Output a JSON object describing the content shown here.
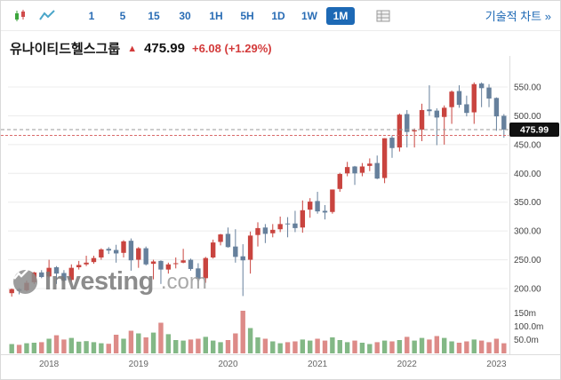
{
  "toolbar": {
    "timeframes": [
      "1",
      "5",
      "15",
      "30",
      "1H",
      "5H",
      "1D",
      "1W",
      "1M"
    ],
    "active_timeframe": "1M",
    "tech_chart_link": "기술적 차트 »"
  },
  "header": {
    "title": "유나이티드헬스그룹",
    "direction_arrow": "▲",
    "price": "475.99",
    "change": "+6.08 (+1.29%)"
  },
  "watermark": {
    "name": "Investing",
    "tld": ".com"
  },
  "chart_data": {
    "type": "candlestick",
    "title": "유나이티드헬스그룹 monthly candlestick with volume",
    "current_price": 475.99,
    "current_price_label": "475.99",
    "red_line_price": 466,
    "y_ticks": [
      550,
      500,
      450,
      400,
      350,
      300,
      250,
      200
    ],
    "ylim": [
      185,
      570
    ],
    "volume_ticks": [
      {
        "label": "150m",
        "value": 150
      },
      {
        "label": "100.0m",
        "value": 100
      },
      {
        "label": "50.0m",
        "value": 50
      }
    ],
    "x_year_labels": [
      "2018",
      "2019",
      "2020",
      "2021",
      "2022",
      "2023"
    ],
    "legend_position": "none",
    "grid": "horizontal",
    "colors": {
      "up": "#c9443f",
      "down": "#66809c",
      "vol_up": "#83b886",
      "vol_down": "#dd8b88",
      "grid": "#ececec",
      "current_line": "#999999",
      "red_line": "#d96a6a",
      "accent_blue": "#1d69b5"
    },
    "candles": [
      [
        "2017-08",
        192,
        200,
        186,
        199,
        35
      ],
      [
        "2017-09",
        199,
        201,
        190,
        196,
        32
      ],
      [
        "2017-10",
        197,
        214,
        195,
        210,
        38
      ],
      [
        "2017-11",
        211,
        229,
        208,
        228,
        40
      ],
      [
        "2017-12",
        228,
        232,
        218,
        220,
        42
      ],
      [
        "2018-01",
        221,
        250,
        219,
        236,
        55
      ],
      [
        "2018-02",
        237,
        239,
        208,
        226,
        68
      ],
      [
        "2018-03",
        227,
        232,
        212,
        214,
        52
      ],
      [
        "2018-04",
        215,
        242,
        212,
        236,
        58
      ],
      [
        "2018-05",
        237,
        248,
        233,
        241,
        44
      ],
      [
        "2018-06",
        242,
        257,
        239,
        245,
        46
      ],
      [
        "2018-07",
        246,
        257,
        243,
        253,
        42
      ],
      [
        "2018-08",
        254,
        270,
        250,
        268,
        38
      ],
      [
        "2018-09",
        269,
        272,
        260,
        266,
        36
      ],
      [
        "2018-10",
        267,
        276,
        245,
        261,
        70
      ],
      [
        "2018-11",
        262,
        284,
        254,
        282,
        55
      ],
      [
        "2018-12",
        283,
        287,
        231,
        249,
        85
      ],
      [
        "2019-01",
        250,
        272,
        236,
        270,
        75
      ],
      [
        "2019-02",
        270,
        273,
        240,
        242,
        60
      ],
      [
        "2019-03",
        243,
        250,
        216,
        247,
        78
      ],
      [
        "2019-04",
        248,
        249,
        208,
        233,
        115
      ],
      [
        "2019-05",
        233,
        245,
        226,
        242,
        72
      ],
      [
        "2019-06",
        243,
        254,
        235,
        244,
        50
      ],
      [
        "2019-07",
        245,
        269,
        244,
        249,
        48
      ],
      [
        "2019-08",
        250,
        252,
        231,
        234,
        52
      ],
      [
        "2019-09",
        235,
        244,
        213,
        217,
        55
      ],
      [
        "2019-10",
        218,
        255,
        210,
        253,
        62
      ],
      [
        "2019-11",
        254,
        285,
        252,
        280,
        48
      ],
      [
        "2019-12",
        281,
        295,
        275,
        294,
        42
      ],
      [
        "2020-01",
        295,
        306,
        271,
        272,
        50
      ],
      [
        "2020-02",
        273,
        303,
        245,
        255,
        75
      ],
      [
        "2020-03",
        256,
        277,
        187,
        249,
        160
      ],
      [
        "2020-04",
        250,
        299,
        226,
        292,
        95
      ],
      [
        "2020-05",
        293,
        315,
        273,
        305,
        60
      ],
      [
        "2020-06",
        306,
        312,
        279,
        295,
        55
      ],
      [
        "2020-07",
        296,
        312,
        289,
        302,
        45
      ],
      [
        "2020-08",
        303,
        325,
        298,
        312,
        38
      ],
      [
        "2020-09",
        313,
        324,
        289,
        312,
        42
      ],
      [
        "2020-10",
        313,
        335,
        298,
        305,
        45
      ],
      [
        "2020-11",
        306,
        353,
        297,
        336,
        52
      ],
      [
        "2020-12",
        337,
        357,
        323,
        351,
        48
      ],
      [
        "2021-01",
        352,
        368,
        330,
        334,
        55
      ],
      [
        "2021-02",
        335,
        345,
        320,
        332,
        48
      ],
      [
        "2021-03",
        333,
        372,
        330,
        372,
        60
      ],
      [
        "2021-04",
        373,
        401,
        368,
        399,
        50
      ],
      [
        "2021-05",
        400,
        420,
        395,
        411,
        42
      ],
      [
        "2021-06",
        412,
        413,
        380,
        400,
        48
      ],
      [
        "2021-07",
        401,
        418,
        395,
        412,
        40
      ],
      [
        "2021-08",
        413,
        426,
        404,
        417,
        35
      ],
      [
        "2021-09",
        418,
        431,
        390,
        391,
        42
      ],
      [
        "2021-10",
        392,
        461,
        383,
        461,
        48
      ],
      [
        "2021-11",
        462,
        466,
        427,
        444,
        45
      ],
      [
        "2021-12",
        445,
        504,
        438,
        502,
        50
      ],
      [
        "2022-01",
        503,
        510,
        445,
        472,
        62
      ],
      [
        "2022-02",
        473,
        478,
        445,
        475,
        48
      ],
      [
        "2022-03",
        476,
        521,
        456,
        510,
        58
      ],
      [
        "2022-04",
        511,
        553,
        500,
        508,
        52
      ],
      [
        "2022-05",
        509,
        513,
        449,
        497,
        65
      ],
      [
        "2022-06",
        498,
        518,
        450,
        514,
        58
      ],
      [
        "2022-07",
        515,
        544,
        486,
        542,
        45
      ],
      [
        "2022-08",
        543,
        553,
        514,
        519,
        40
      ],
      [
        "2022-09",
        520,
        535,
        499,
        505,
        45
      ],
      [
        "2022-10",
        506,
        558,
        486,
        555,
        52
      ],
      [
        "2022-11",
        556,
        558,
        515,
        548,
        48
      ],
      [
        "2022-12",
        549,
        555,
        515,
        530,
        42
      ],
      [
        "2023-01",
        531,
        532,
        474,
        499,
        55
      ],
      [
        "2023-02",
        500,
        503,
        462,
        476,
        38
      ]
    ]
  }
}
